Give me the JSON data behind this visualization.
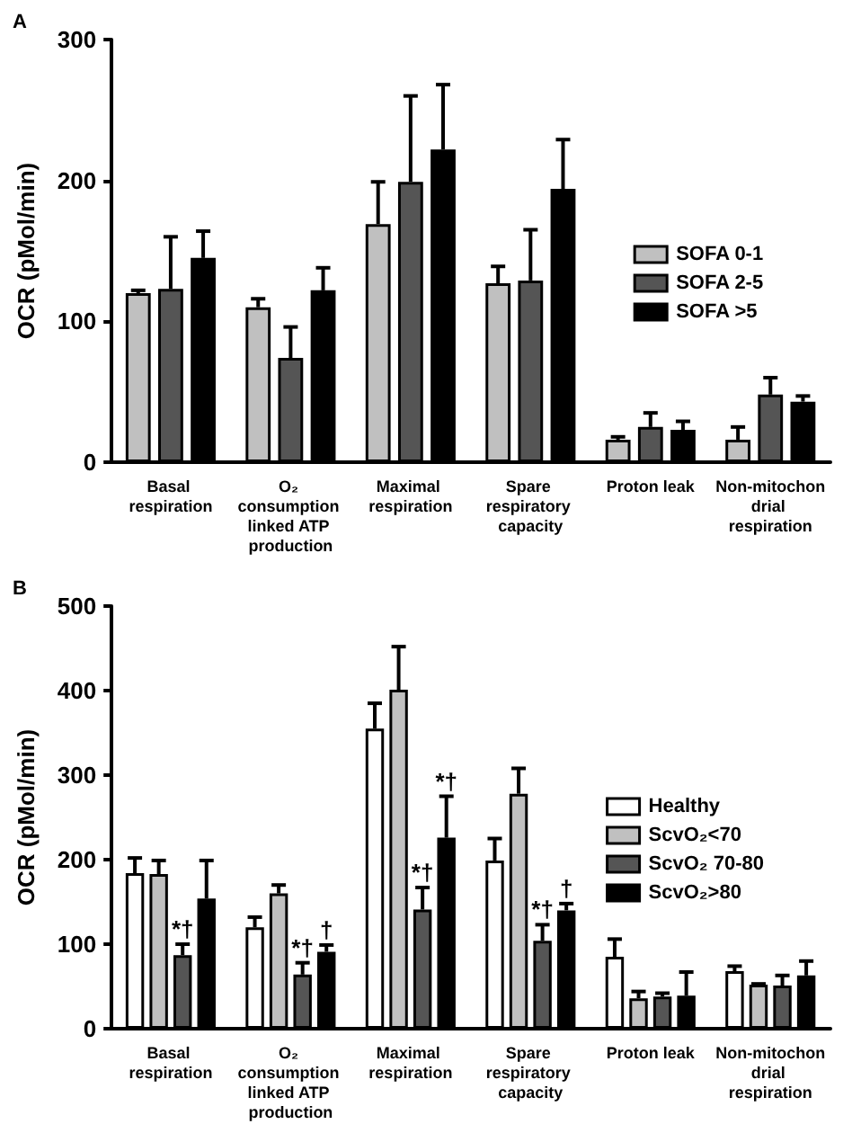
{
  "chart_data": [
    {
      "type": "bar",
      "title": "A",
      "ylabel": "OCR (pMol/min)",
      "categories": [
        "Basal respiration",
        "O₂ consumption linked ATP production",
        "Maximal respiration",
        "Spare respiratory capacity",
        "Proton leak",
        "Non-mitochondrial respiration"
      ],
      "ylim": [
        0,
        300
      ],
      "yticks": [
        0,
        100,
        200,
        300
      ],
      "grid": false,
      "legend": "right",
      "series": [
        {
          "name": "SOFA 0-1",
          "color": "#c0c0c0",
          "values": [
            120,
            110,
            169,
            127,
            16,
            16
          ],
          "errors": [
            [
              120,
              122
            ],
            [
              110,
              116
            ],
            [
              169,
              199
            ],
            [
              127,
              139
            ],
            [
              16,
              18
            ],
            [
              16,
              25
            ]
          ]
        },
        {
          "name": "SOFA 2-5",
          "color": "#555555",
          "values": [
            123,
            74,
            199,
            129,
            25,
            48
          ],
          "errors": [
            [
              123,
              160
            ],
            [
              74,
              96
            ],
            [
              199,
              260
            ],
            [
              129,
              165
            ],
            [
              25,
              35
            ],
            [
              48,
              60
            ]
          ]
        },
        {
          "name": "SOFA >5",
          "color": "#000000",
          "values": [
            145,
            122,
            222,
            194,
            23,
            43
          ],
          "errors": [
            [
              145,
              164
            ],
            [
              122,
              138
            ],
            [
              222,
              268
            ],
            [
              194,
              229
            ],
            [
              23,
              29
            ],
            [
              43,
              47
            ]
          ]
        }
      ]
    },
    {
      "type": "bar",
      "title": "B",
      "ylabel": "OCR (pMol/min)",
      "categories": [
        "Basal respiration",
        "O₂ consumption linked ATP production",
        "Maximal respiration",
        "Spare respiratory capacity",
        "Proton leak",
        "Non-mitochondrial respiration"
      ],
      "ylim": [
        0,
        500
      ],
      "yticks": [
        0,
        100,
        200,
        300,
        400,
        500
      ],
      "grid": false,
      "legend": "right",
      "series": [
        {
          "name": "Healthy",
          "color": "#ffffff",
          "values": [
            184,
            120,
            355,
            199,
            85,
            68
          ],
          "errors": [
            [
              184,
              202
            ],
            [
              120,
              132
            ],
            [
              355,
              385
            ],
            [
              199,
              225
            ],
            [
              85,
              106
            ],
            [
              68,
              74
            ]
          ]
        },
        {
          "name": "ScvO₂<70",
          "color": "#c0c0c0",
          "values": [
            183,
            160,
            401,
            278,
            36,
            52
          ],
          "errors": [
            [
              183,
              199
            ],
            [
              160,
              170
            ],
            [
              401,
              452
            ],
            [
              278,
              308
            ],
            [
              36,
              44
            ],
            [
              52,
              53
            ]
          ]
        },
        {
          "name": "ScvO₂ 70-80",
          "color": "#555555",
          "values": [
            87,
            64,
            141,
            104,
            38,
            51
          ],
          "errors": [
            [
              87,
              100
            ],
            [
              64,
              78
            ],
            [
              141,
              167
            ],
            [
              104,
              123
            ],
            [
              38,
              42
            ],
            [
              51,
              63
            ]
          ]
        },
        {
          "name": "ScvO₂>80",
          "color": "#000000",
          "values": [
            154,
            91,
            226,
            140,
            39,
            63
          ],
          "errors": [
            [
              154,
              199
            ],
            [
              91,
              99
            ],
            [
              226,
              275
            ],
            [
              140,
              148
            ],
            [
              39,
              67
            ],
            [
              63,
              80
            ]
          ]
        }
      ],
      "annotations": [
        {
          "text": "*†",
          "x": "Basal respiration",
          "y": 100
        },
        {
          "text": "*†",
          "x": "O₂ consumption linked ATP production",
          "y": 78
        },
        {
          "text": "†",
          "x": "O₂ consumption linked ATP production",
          "y": 99
        },
        {
          "text": "*†",
          "x": "Maximal respiration",
          "y": 167
        },
        {
          "text": "*†",
          "x": "Maximal respiration",
          "y": 275
        },
        {
          "text": "*†",
          "x": "Spare respiratory capacity",
          "y": 123
        },
        {
          "text": "†",
          "x": "Spare respiratory capacity",
          "y": 148
        }
      ]
    }
  ]
}
